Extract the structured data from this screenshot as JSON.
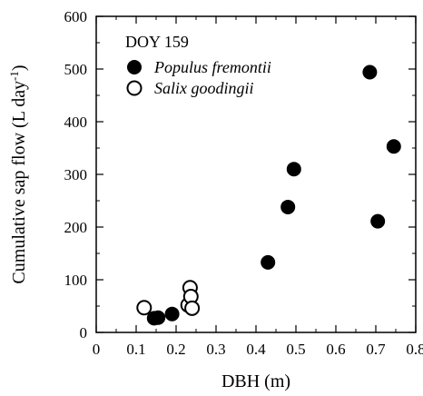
{
  "chart_data": {
    "type": "scatter",
    "title": "",
    "xlabel": "DBH (m)",
    "ylabel": "Cumulative sap flow (L day-1)",
    "ylabel_main": "Cumulative sap flow (L day",
    "ylabel_sup": "-1",
    "ylabel_close": ")",
    "xlim": [
      0,
      0.8
    ],
    "ylim": [
      0,
      600
    ],
    "xticks": [
      0,
      0.1,
      0.2,
      0.3,
      0.4,
      0.5,
      0.6,
      0.7,
      0.8
    ],
    "xtick_labels": [
      "0",
      "0.1",
      "0.2",
      "0.3",
      "0.4",
      "0.5",
      "0.6",
      "0.7",
      "0.8"
    ],
    "yticks": [
      0,
      100,
      200,
      300,
      400,
      500,
      600
    ],
    "ytick_labels": [
      "0",
      "100",
      "200",
      "300",
      "400",
      "500",
      "600"
    ],
    "grid": false,
    "legend": {
      "placement": "top-left",
      "title": "DOY 159"
    },
    "series": [
      {
        "name": "Populus fremontii",
        "marker": "filled-circle",
        "color": "#000000",
        "points": [
          {
            "x": 0.145,
            "y": 27
          },
          {
            "x": 0.155,
            "y": 28
          },
          {
            "x": 0.19,
            "y": 35
          },
          {
            "x": 0.43,
            "y": 133
          },
          {
            "x": 0.48,
            "y": 238
          },
          {
            "x": 0.495,
            "y": 310
          },
          {
            "x": 0.685,
            "y": 494
          },
          {
            "x": 0.705,
            "y": 211
          },
          {
            "x": 0.745,
            "y": 353
          }
        ]
      },
      {
        "name": "Salix goodingii",
        "marker": "open-circle",
        "color": "#000000",
        "points": [
          {
            "x": 0.12,
            "y": 47
          },
          {
            "x": 0.23,
            "y": 52
          },
          {
            "x": 0.235,
            "y": 85
          },
          {
            "x": 0.237,
            "y": 68
          },
          {
            "x": 0.24,
            "y": 46
          }
        ]
      }
    ]
  }
}
